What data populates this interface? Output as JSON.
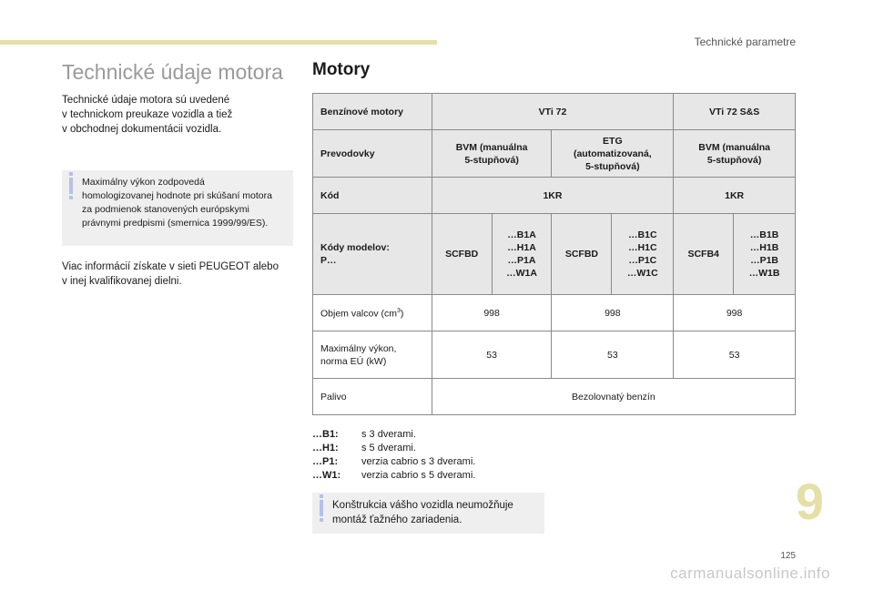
{
  "header": {
    "section_title": "Technické parametre"
  },
  "left": {
    "title": "Technické údaje motora",
    "intro_lines": [
      "Technické údaje motora sú uvedené",
      "v technickom preukaze vozidla a tiež",
      "v obchodnej dokumentácii vozidla."
    ],
    "info_lines": [
      "Maximálny výkon zodpovedá",
      "homologizovanej hodnote pri skúšaní motora",
      "za podmienok stanovených európskymi",
      "právnymi predpismi (smernica 1999/99/ES)."
    ],
    "footer_lines": [
      "Viac informácií získate v sieti PEUGEOT alebo",
      "v inej kvalifikovanej dielni."
    ]
  },
  "main": {
    "title": "Motory",
    "table": {
      "engine_label": "Benzínové motory",
      "engine_vti72": "VTi 72",
      "engine_vti72ss": "VTi 72 S&S",
      "gearbox_label": "Prevodovky",
      "gearbox_1": [
        "BVM (manuálna",
        "5-stupňová)"
      ],
      "gearbox_2": [
        "ETG",
        "(automatizovaná,",
        "5-stupňová)"
      ],
      "gearbox_3": [
        "BVM (manuálna",
        "5-stupňová)"
      ],
      "code_label": "Kód",
      "code_1": "1KR",
      "code_2": "1KR",
      "models_label": [
        "Kódy modelov:",
        "P…"
      ],
      "model_a_code": "SCFBD",
      "model_a_list": [
        "…B1A",
        "…H1A",
        "…P1A",
        "…W1A"
      ],
      "model_b_code": "SCFBD",
      "model_b_list": [
        "…B1C",
        "…H1C",
        "…P1C",
        "…W1C"
      ],
      "model_c_code": "SCFB4",
      "model_c_list": [
        "…B1B",
        "…H1B",
        "…P1B",
        "…W1B"
      ],
      "volume_label": "Objem valcov (cm",
      "volume_unit_sup": "3",
      "volume_label_end": ")",
      "volume_values": [
        "998",
        "998",
        "998"
      ],
      "power_label": [
        "Maximálny výkon,",
        "norma EÚ (kW)"
      ],
      "power_values": [
        "53",
        "53",
        "53"
      ],
      "fuel_label": "Palivo",
      "fuel_value": "Bezolovnatý benzín"
    },
    "legend": [
      {
        "key": "…B1:",
        "value": "s 3 dverami."
      },
      {
        "key": "…H1:",
        "value": "s 5 dverami."
      },
      {
        "key": "…P1:",
        "value": "verzia cabrio s 3 dverami."
      },
      {
        "key": "…W1:",
        "value": "verzia cabrio s 5 dverami."
      }
    ],
    "info_lines": [
      "Konštrukcia vášho vozidla neumožňuje",
      "montáž ťažného zariadenia."
    ]
  },
  "chapter_number": "9",
  "page_number": "125",
  "watermark": "carmanualsonline.info",
  "colors": {
    "accent": "#e5dfa8",
    "info_icon": "#b7c1e8",
    "header_row": "#e7e7e7"
  }
}
